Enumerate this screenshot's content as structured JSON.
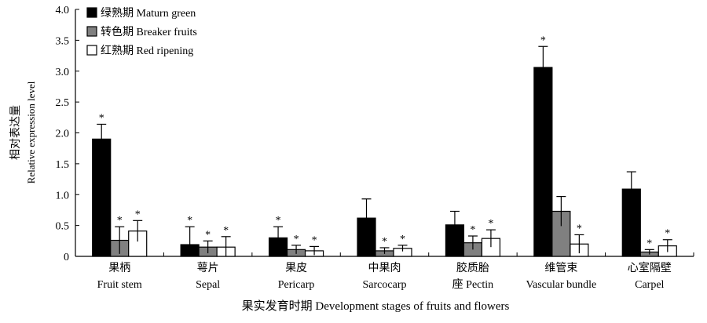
{
  "chart_data": {
    "type": "bar",
    "title": "",
    "ylabel_cn": "相对表达量",
    "ylabel_en": "Relative expression level",
    "xlabel": "果实发育时期 Development stages of fruits and flowers",
    "ylim": [
      0,
      4.0
    ],
    "yticks": [
      "0",
      "0.5",
      "1.0",
      "1.5",
      "2.0",
      "2.5",
      "3.0",
      "3.5",
      "4.0"
    ],
    "ytick_values": [
      0,
      0.5,
      1.0,
      1.5,
      2.0,
      2.5,
      3.0,
      3.5,
      4.0
    ],
    "grid": false,
    "legend_position": "top-left",
    "categories": [
      {
        "cn": "果柄",
        "en": "Fruit stem"
      },
      {
        "cn": "萼片",
        "en": "Sepal"
      },
      {
        "cn": "果皮",
        "en": "Pericarp"
      },
      {
        "cn": "中果肉",
        "en": "Sarcocarp"
      },
      {
        "cn": "胶质胎",
        "en": "座 Pectin"
      },
      {
        "cn": "维管束",
        "en": "Vascular bundle"
      },
      {
        "cn": "心室隔壁",
        "en": "Carpel"
      }
    ],
    "series": [
      {
        "name": "绿熟期 Maturn green",
        "fill": "#000000",
        "values": [
          1.9,
          0.19,
          0.3,
          0.62,
          0.51,
          3.06,
          1.09
        ],
        "errors": [
          0.24,
          0.29,
          0.18,
          0.31,
          0.22,
          0.34,
          0.28
        ],
        "significant": [
          true,
          true,
          true,
          false,
          false,
          true,
          false
        ]
      },
      {
        "name": "转色期 Breaker fruits",
        "fill": "#808080",
        "values": [
          0.26,
          0.15,
          0.11,
          0.09,
          0.22,
          0.73,
          0.07
        ],
        "errors": [
          0.22,
          0.1,
          0.07,
          0.05,
          0.11,
          0.24,
          0.04
        ],
        "significant": [
          true,
          true,
          true,
          true,
          true,
          false,
          true
        ]
      },
      {
        "name": "红熟期 Red ripening",
        "fill": "#ffffff",
        "values": [
          0.41,
          0.15,
          0.09,
          0.13,
          0.29,
          0.2,
          0.17
        ],
        "errors": [
          0.17,
          0.17,
          0.07,
          0.05,
          0.14,
          0.15,
          0.1
        ],
        "significant": [
          true,
          true,
          true,
          true,
          true,
          true,
          true
        ]
      }
    ],
    "significance_marker": "*"
  }
}
